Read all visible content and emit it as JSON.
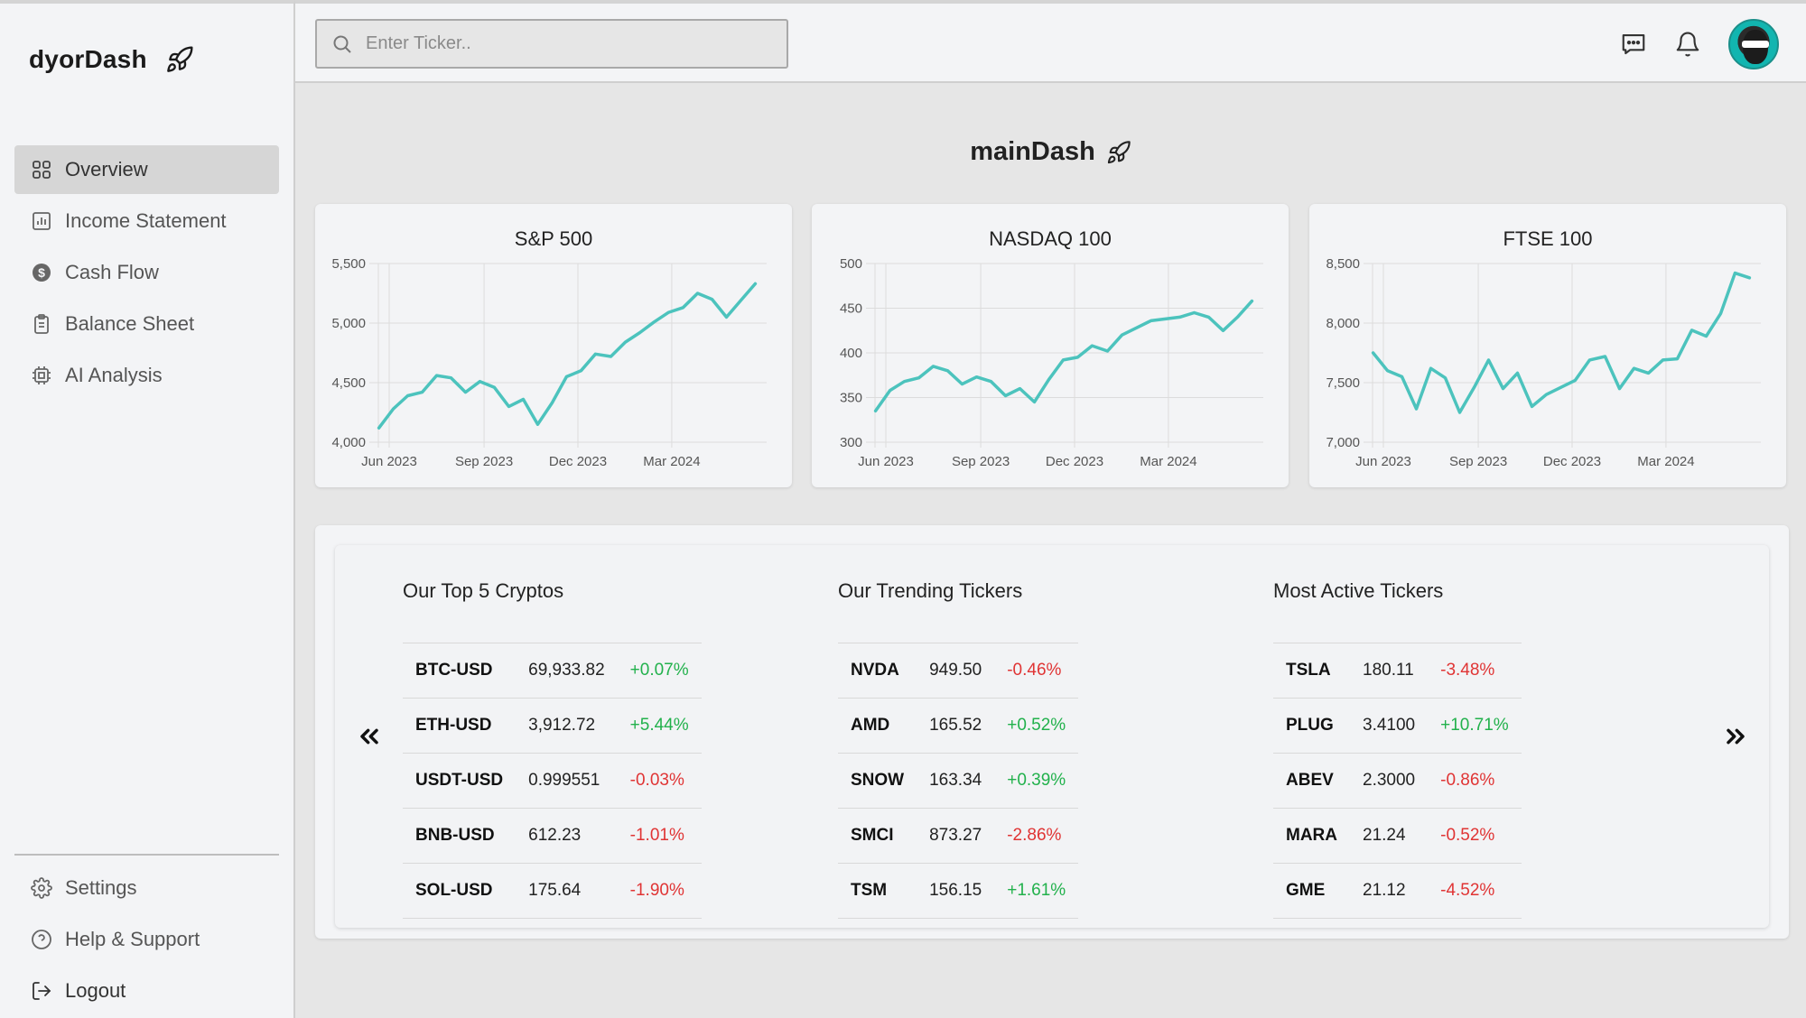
{
  "brand": {
    "name": "dyorDash"
  },
  "sidebar": {
    "items": [
      {
        "label": "Overview",
        "icon": "grid-icon",
        "active": true
      },
      {
        "label": "Income Statement",
        "icon": "bar-chart-icon",
        "active": false
      },
      {
        "label": "Cash Flow",
        "icon": "dollar-circle-icon",
        "active": false
      },
      {
        "label": "Balance Sheet",
        "icon": "clipboard-icon",
        "active": false
      },
      {
        "label": "AI Analysis",
        "icon": "cpu-icon",
        "active": false
      }
    ],
    "bottom_items": [
      {
        "label": "Settings",
        "icon": "gear-icon"
      },
      {
        "label": "Help & Support",
        "icon": "help-circle-icon"
      },
      {
        "label": "Logout",
        "icon": "logout-icon"
      }
    ]
  },
  "search": {
    "placeholder": "Enter Ticker..",
    "value": ""
  },
  "header": {
    "title": "mainDash"
  },
  "colors": {
    "line": "#4cc3bd",
    "positive": "#22b14c",
    "negative": "#e03434",
    "active_nav": "#d6d6d6"
  },
  "chart_data": [
    {
      "type": "line",
      "title": "S&P 500",
      "x_ticks": [
        "Jun 2023",
        "Sep 2023",
        "Dec 2023",
        "Mar 2024"
      ],
      "y_ticks": [
        "5,500",
        "5,000",
        "4,500",
        "4,000"
      ],
      "ylim": [
        4000,
        5500
      ],
      "series": [
        {
          "x": [
            "2023-05-22",
            "2023-06-05",
            "2023-06-19",
            "2023-07-03",
            "2023-07-17",
            "2023-07-31",
            "2023-08-14",
            "2023-08-28",
            "2023-09-11",
            "2023-09-25",
            "2023-10-09",
            "2023-10-23",
            "2023-11-06",
            "2023-11-20",
            "2023-12-04",
            "2023-12-18",
            "2024-01-02",
            "2024-01-16",
            "2024-01-30",
            "2024-02-13",
            "2024-02-27",
            "2024-03-12",
            "2024-03-26",
            "2024-04-09",
            "2024-04-23",
            "2024-05-07",
            "2024-05-21"
          ],
          "y": [
            4120,
            4280,
            4390,
            4420,
            4560,
            4540,
            4420,
            4510,
            4460,
            4300,
            4360,
            4150,
            4330,
            4550,
            4600,
            4740,
            4720,
            4840,
            4920,
            5010,
            5090,
            5130,
            5250,
            5200,
            5050,
            5190,
            5330
          ]
        }
      ],
      "grid": true
    },
    {
      "type": "line",
      "title": "NASDAQ 100",
      "x_ticks": [
        "Jun 2023",
        "Sep 2023",
        "Dec 2023",
        "Mar 2024"
      ],
      "y_ticks": [
        "500",
        "450",
        "400",
        "350",
        "300"
      ],
      "ylim": [
        300,
        500
      ],
      "series": [
        {
          "x": [
            "2023-05-22",
            "2023-06-05",
            "2023-06-19",
            "2023-07-03",
            "2023-07-17",
            "2023-07-31",
            "2023-08-14",
            "2023-08-28",
            "2023-09-11",
            "2023-09-25",
            "2023-10-09",
            "2023-10-23",
            "2023-11-06",
            "2023-11-20",
            "2023-12-04",
            "2023-12-18",
            "2024-01-02",
            "2024-01-16",
            "2024-01-30",
            "2024-02-13",
            "2024-02-27",
            "2024-03-12",
            "2024-03-26",
            "2024-04-09",
            "2024-04-23",
            "2024-05-07",
            "2024-05-21"
          ],
          "y": [
            335,
            358,
            368,
            372,
            385,
            380,
            365,
            373,
            368,
            352,
            360,
            345,
            370,
            392,
            395,
            408,
            402,
            420,
            428,
            436,
            438,
            440,
            445,
            440,
            425,
            440,
            458
          ]
        }
      ],
      "grid": true
    },
    {
      "type": "line",
      "title": "FTSE 100",
      "x_ticks": [
        "Jun 2023",
        "Sep 2023",
        "Dec 2023",
        "Mar 2024"
      ],
      "y_ticks": [
        "8,500",
        "8,000",
        "7,500",
        "7,000"
      ],
      "ylim": [
        7000,
        8500
      ],
      "series": [
        {
          "x": [
            "2023-05-22",
            "2023-06-05",
            "2023-06-19",
            "2023-07-03",
            "2023-07-17",
            "2023-07-31",
            "2023-08-14",
            "2023-08-28",
            "2023-09-11",
            "2023-09-25",
            "2023-10-09",
            "2023-10-23",
            "2023-11-06",
            "2023-11-20",
            "2023-12-04",
            "2023-12-18",
            "2024-01-02",
            "2024-01-16",
            "2024-01-30",
            "2024-02-13",
            "2024-02-27",
            "2024-03-12",
            "2024-03-26",
            "2024-04-09",
            "2024-04-23",
            "2024-05-07",
            "2024-05-21"
          ],
          "y": [
            7750,
            7600,
            7550,
            7280,
            7620,
            7540,
            7250,
            7460,
            7690,
            7450,
            7580,
            7300,
            7400,
            7460,
            7520,
            7690,
            7720,
            7450,
            7620,
            7580,
            7690,
            7700,
            7940,
            7890,
            8080,
            8420,
            8380
          ]
        }
      ],
      "grid": true
    }
  ],
  "tables": {
    "prev_label": "previous",
    "next_label": "next",
    "cryptos": {
      "title": "Our Top 5 Cryptos",
      "rows": [
        {
          "symbol": "BTC-USD",
          "price": "69,933.82",
          "change": "+0.07%",
          "dir": "pos"
        },
        {
          "symbol": "ETH-USD",
          "price": "3,912.72",
          "change": "+5.44%",
          "dir": "pos"
        },
        {
          "symbol": "USDT-USD",
          "price": "0.999551",
          "change": "-0.03%",
          "dir": "neg"
        },
        {
          "symbol": "BNB-USD",
          "price": "612.23",
          "change": "-1.01%",
          "dir": "neg"
        },
        {
          "symbol": "SOL-USD",
          "price": "175.64",
          "change": "-1.90%",
          "dir": "neg"
        }
      ]
    },
    "trending": {
      "title": "Our Trending Tickers",
      "rows": [
        {
          "symbol": "NVDA",
          "price": "949.50",
          "change": "-0.46%",
          "dir": "neg"
        },
        {
          "symbol": "AMD",
          "price": "165.52",
          "change": "+0.52%",
          "dir": "pos"
        },
        {
          "symbol": "SNOW",
          "price": "163.34",
          "change": "+0.39%",
          "dir": "pos"
        },
        {
          "symbol": "SMCI",
          "price": "873.27",
          "change": "-2.86%",
          "dir": "neg"
        },
        {
          "symbol": "TSM",
          "price": "156.15",
          "change": "+1.61%",
          "dir": "pos"
        }
      ]
    },
    "active": {
      "title": "Most Active Tickers",
      "rows": [
        {
          "symbol": "TSLA",
          "price": "180.11",
          "change": "-3.48%",
          "dir": "neg"
        },
        {
          "symbol": "PLUG",
          "price": "3.4100",
          "change": "+10.71%",
          "dir": "pos"
        },
        {
          "symbol": "ABEV",
          "price": "2.3000",
          "change": "-0.86%",
          "dir": "neg"
        },
        {
          "symbol": "MARA",
          "price": "21.24",
          "change": "-0.52%",
          "dir": "neg"
        },
        {
          "symbol": "GME",
          "price": "21.12",
          "change": "-4.52%",
          "dir": "neg"
        }
      ]
    }
  }
}
